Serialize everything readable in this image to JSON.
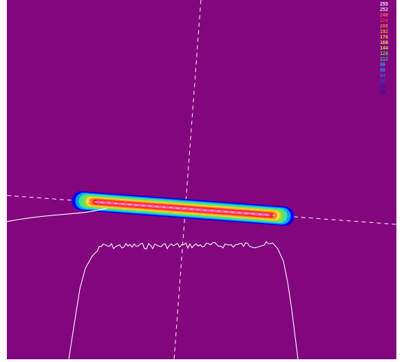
{
  "viewer": {
    "background_color": "#82067e",
    "overlay_color": "#ffffff"
  },
  "legend": {
    "levels": [
      {
        "label": "255",
        "color": "#ffffff"
      },
      {
        "label": "252",
        "color": "#ffe0ff"
      },
      {
        "label": "240",
        "color": "#ff6070"
      },
      {
        "label": "224",
        "color": "#ff3030"
      },
      {
        "label": "208",
        "color": "#ff6a40"
      },
      {
        "label": "192",
        "color": "#ff9a40"
      },
      {
        "label": "176",
        "color": "#ffb840"
      },
      {
        "label": "160",
        "color": "#ffd040"
      },
      {
        "label": "144",
        "color": "#c0e040"
      },
      {
        "label": "128",
        "color": "#60d060"
      },
      {
        "label": "112",
        "color": "#40c0a0"
      },
      {
        "label": "96",
        "color": "#20b0e0"
      },
      {
        "label": "80",
        "color": "#3090ff"
      },
      {
        "label": "64",
        "color": "#2060ff"
      },
      {
        "label": "48",
        "color": "#1840e0"
      },
      {
        "label": "32",
        "color": "#2020c0"
      },
      {
        "label": "16",
        "color": "#3010a0"
      }
    ]
  },
  "beam_profile": {
    "contour_colors": [
      "#0000ff",
      "#00a0ff",
      "#40e0a0",
      "#80e040",
      "#ffd040",
      "#ff8020",
      "#ff2020",
      "#ff60a0"
    ]
  }
}
